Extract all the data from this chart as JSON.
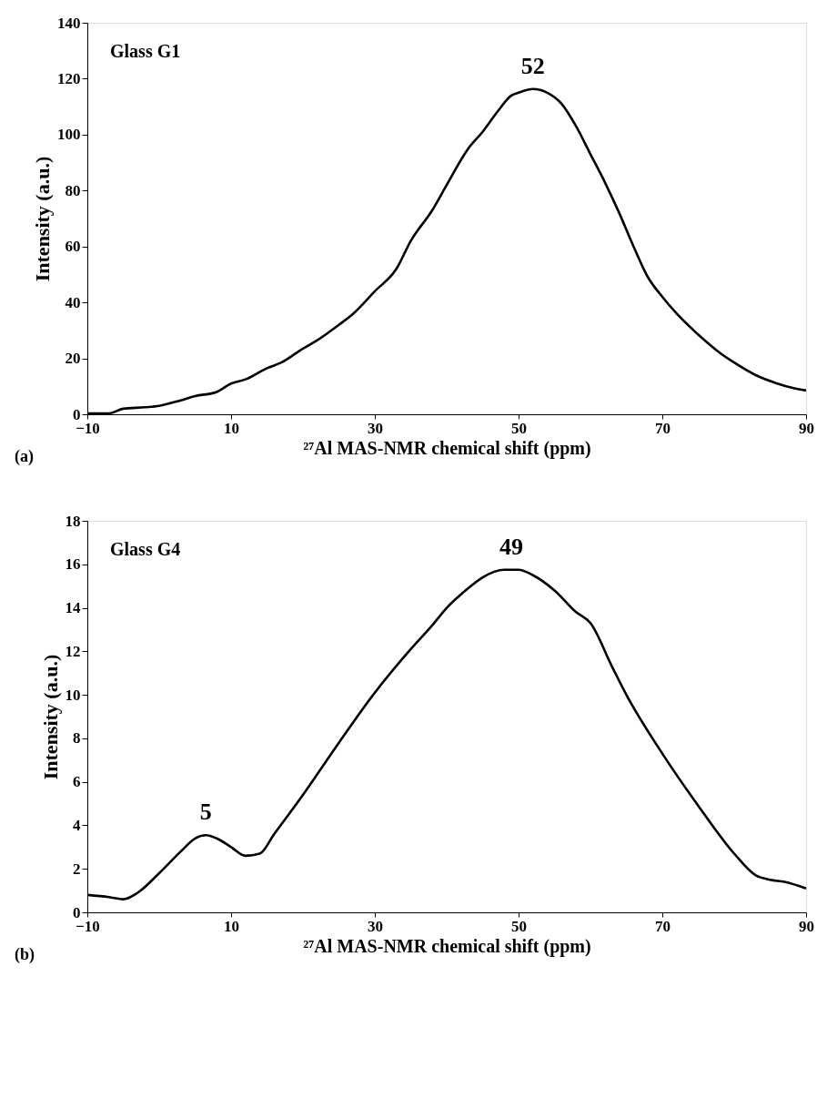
{
  "chart_data": [
    {
      "type": "line",
      "xlabel": "²⁷Al MAS-NMR chemical shift (ppm)",
      "ylabel": "Intensity (a.u.)",
      "x": [
        -10,
        -7,
        -5,
        -2,
        0,
        3,
        5,
        8,
        10,
        12,
        15,
        17,
        20,
        22,
        25,
        27,
        30,
        33,
        35,
        38,
        40,
        43,
        45,
        47,
        49,
        50,
        52,
        54,
        56,
        58,
        60,
        62,
        64,
        66,
        68,
        70,
        72,
        75,
        78,
        80,
        83,
        86,
        88,
        90
      ],
      "series": [
        {
          "color": "#000000",
          "values": [
            0.3,
            0.3,
            2,
            2.5,
            3,
            5,
            6.5,
            8,
            11,
            12.5,
            16.5,
            18.5,
            23.5,
            26.5,
            32,
            36,
            44,
            52,
            62,
            73,
            82,
            95,
            101,
            108,
            114,
            115,
            116.3,
            115,
            111,
            103,
            93,
            83,
            72,
            60,
            49,
            42,
            36,
            28.5,
            22,
            18.5,
            14,
            11,
            9.5,
            8.5
          ]
        }
      ],
      "xlim": [
        -10,
        90
      ],
      "xticks": [
        -10,
        10,
        30,
        50,
        70,
        90
      ],
      "ylim": [
        0,
        140
      ],
      "yticks": [
        0,
        20,
        40,
        60,
        80,
        100,
        120,
        140
      ],
      "grid": false,
      "marker": "none",
      "line_style": "solid",
      "annotations": [
        "Glass G1",
        "(a)",
        {
          "text": "52",
          "x": 52,
          "y": 116.3
        }
      ]
    },
    {
      "type": "line",
      "xlabel": "²⁷Al MAS-NMR chemical shift (ppm)",
      "ylabel": "Intensity (a.u.)",
      "x": [
        -10,
        -7,
        -5,
        -3,
        0,
        3,
        5,
        6.5,
        8,
        10,
        12,
        14,
        16,
        20,
        25,
        30,
        35,
        38,
        40,
        43,
        45,
        48,
        50,
        52,
        55,
        58,
        60,
        63,
        65,
        70,
        75,
        80,
        83,
        85,
        87,
        90
      ],
      "series": [
        {
          "color": "#000000",
          "values": [
            0.8,
            0.7,
            0.6,
            0.9,
            1.8,
            2.8,
            3.4,
            3.55,
            3.4,
            3.0,
            2.6,
            2.7,
            3.6,
            5.4,
            7.8,
            10.1,
            12.1,
            13.2,
            14.0,
            14.9,
            15.4,
            15.75,
            15.75,
            15.5,
            14.8,
            13.8,
            13.3,
            11.3,
            10.0,
            7.3,
            4.9,
            2.7,
            1.7,
            1.5,
            1.4,
            1.1
          ]
        }
      ],
      "xlim": [
        -10,
        90
      ],
      "xticks": [
        -10,
        10,
        30,
        50,
        70,
        90
      ],
      "ylim": [
        0,
        18
      ],
      "yticks": [
        0,
        2,
        4,
        6,
        8,
        10,
        12,
        14,
        16,
        18
      ],
      "grid": false,
      "marker": "none",
      "line_style": "solid",
      "annotations": [
        "Glass G4",
        "(b)",
        {
          "text": "49",
          "x": 49,
          "y": 15.75
        },
        {
          "text": "5",
          "x": 6.5,
          "y": 3.55
        }
      ]
    }
  ]
}
